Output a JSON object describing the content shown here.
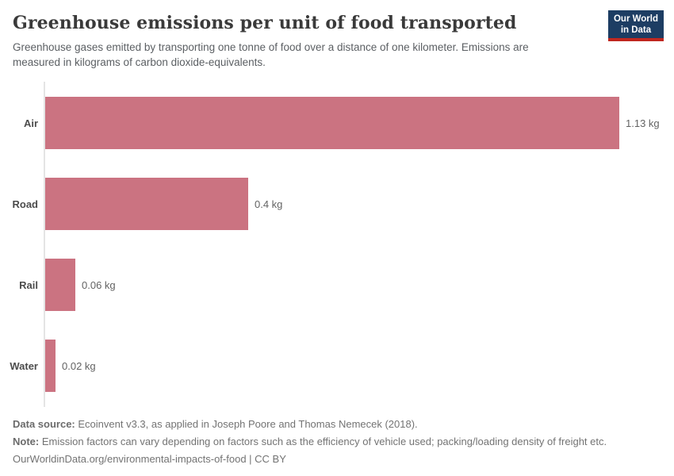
{
  "logo": {
    "line1": "Our World",
    "line2": "in Data",
    "bg_color": "#1d3d63",
    "accent_color": "#c0271f"
  },
  "header": {
    "title": "Greenhouse emissions per unit of food transported",
    "subtitle": "Greenhouse gases emitted by transporting one tonne of food over a distance of one kilometer. Emissions are measured in kilograms of carbon dioxide-equivalents."
  },
  "chart_data": {
    "type": "bar",
    "orientation": "horizontal",
    "categories": [
      "Air",
      "Road",
      "Rail",
      "Water"
    ],
    "values": [
      1.13,
      0.4,
      0.06,
      0.02
    ],
    "value_labels": [
      "1.13 kg",
      "0.4 kg",
      "0.06 kg",
      "0.02 kg"
    ],
    "unit": "kg CO2-equivalents per tonne-kilometer",
    "xlim": [
      0,
      1.13
    ],
    "bar_color": "#cb7381",
    "grid": false,
    "legend": "none",
    "title": "Greenhouse emissions per unit of food transported"
  },
  "footer": {
    "data_source_label": "Data source:",
    "data_source_text": "Ecoinvent v3.3, as applied in Joseph Poore and Thomas Nemecek (2018).",
    "note_label": "Note:",
    "note_text": "Emission factors can vary depending on factors such as the efficiency of vehicle used; packing/loading density of freight etc.",
    "url_text": "OurWorldinData.org/environmental-impacts-of-food | CC BY"
  }
}
